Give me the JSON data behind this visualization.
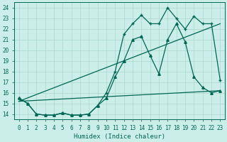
{
  "xlabel": "Humidex (Indice chaleur)",
  "ylabel": "",
  "bg_color": "#cceee8",
  "line_color": "#006655",
  "grid_color": "#aad8cc",
  "xlim": [
    -0.5,
    23.5
  ],
  "ylim": [
    13.5,
    24.5
  ],
  "xtick_labels": [
    "0",
    "1",
    "2",
    "3",
    "4",
    "5",
    "6",
    "7",
    "8",
    "9",
    "10",
    "11",
    "12",
    "13",
    "14",
    "15",
    "16",
    "17",
    "18",
    "19",
    "20",
    "21",
    "22",
    "23"
  ],
  "ytick_labels": [
    "14",
    "15",
    "16",
    "17",
    "18",
    "19",
    "20",
    "21",
    "22",
    "23",
    "24"
  ],
  "series": [
    {
      "x": [
        0,
        1,
        2,
        3,
        4,
        5,
        6,
        7,
        8,
        9,
        10,
        11,
        12,
        13,
        14,
        15,
        16,
        17,
        18,
        19,
        20,
        21,
        22,
        23
      ],
      "y": [
        15.5,
        15.0,
        14.0,
        13.9,
        13.9,
        14.1,
        13.9,
        13.9,
        14.0,
        14.8,
        16.0,
        18.0,
        21.5,
        22.5,
        23.3,
        22.5,
        22.5,
        24.0,
        23.0,
        22.0,
        23.2,
        22.5,
        22.5,
        17.2
      ],
      "marker": "+",
      "markersize": 3.5,
      "lw": 0.9
    },
    {
      "x": [
        0,
        1,
        2,
        3,
        4,
        5,
        6,
        7,
        8,
        9,
        10,
        11,
        12,
        13,
        14,
        15,
        16,
        17,
        18,
        19,
        20,
        21,
        22,
        23
      ],
      "y": [
        15.5,
        15.0,
        14.0,
        13.9,
        13.9,
        14.1,
        13.9,
        13.9,
        14.0,
        14.8,
        15.5,
        17.5,
        19.0,
        21.0,
        21.3,
        19.5,
        17.8,
        21.0,
        22.5,
        20.8,
        17.5,
        16.5,
        16.0,
        16.2
      ],
      "marker": "^",
      "markersize": 2.5,
      "lw": 0.9
    },
    {
      "x": [
        0,
        23
      ],
      "y": [
        15.2,
        16.2
      ],
      "marker": null,
      "markersize": 0,
      "lw": 0.9
    },
    {
      "x": [
        0,
        23
      ],
      "y": [
        15.2,
        22.5
      ],
      "marker": null,
      "markersize": 0,
      "lw": 0.9
    }
  ]
}
